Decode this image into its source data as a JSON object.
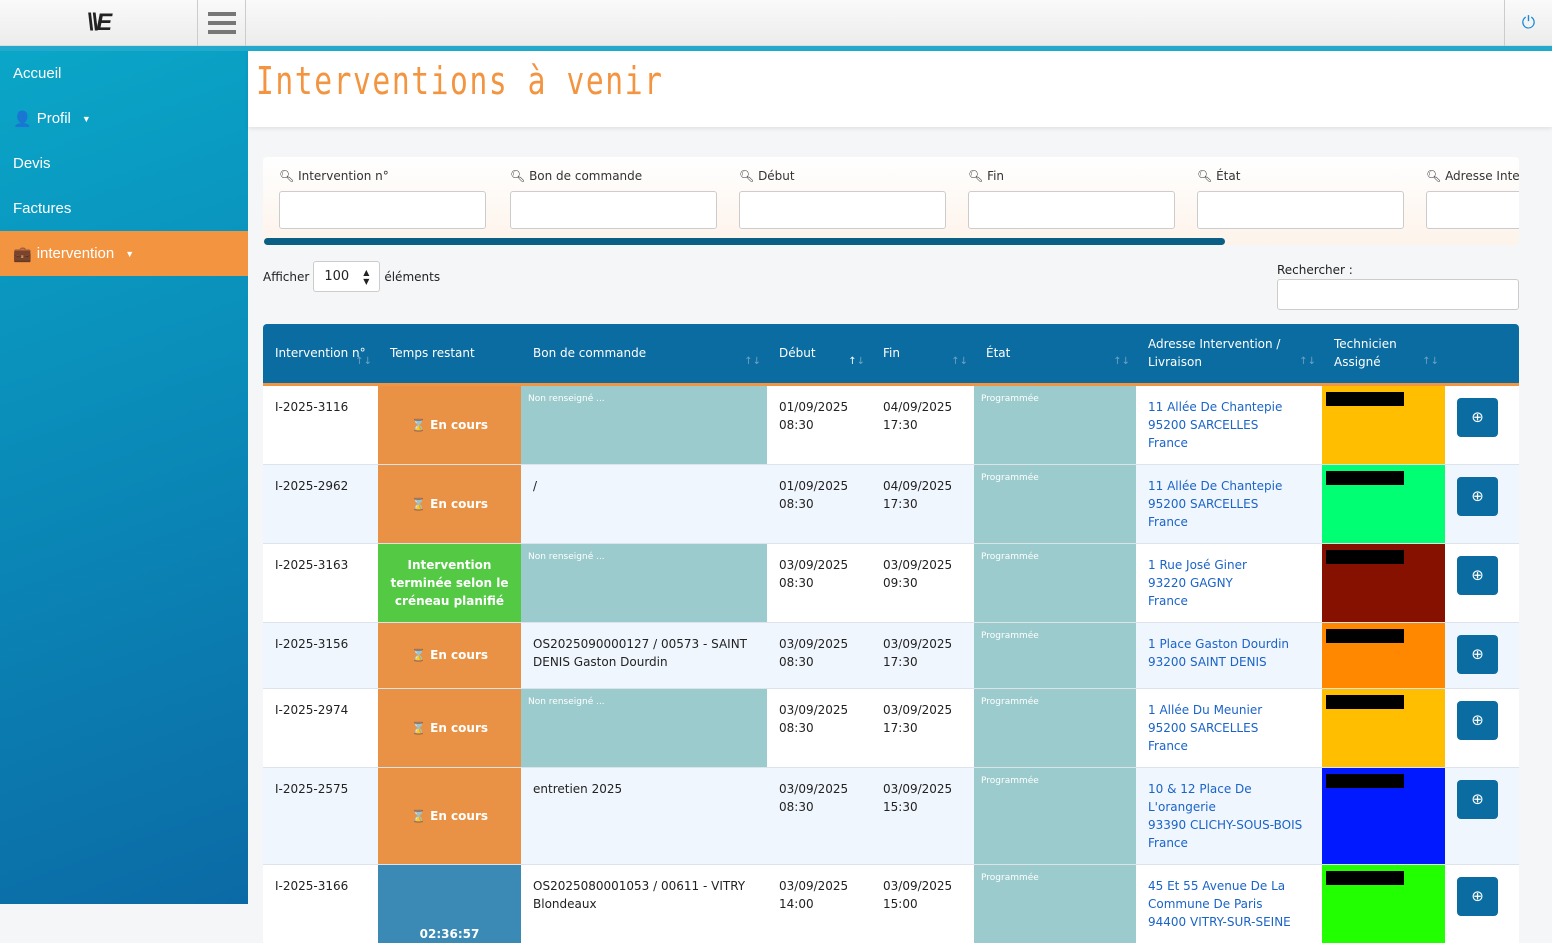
{
  "app": {
    "logo": "\\\\E",
    "power_icon": "power-icon"
  },
  "sidebar": {
    "items": [
      {
        "label": "Accueil"
      },
      {
        "label": "Profil",
        "icon": "user-icon"
      },
      {
        "label": "Devis"
      },
      {
        "label": "Factures"
      },
      {
        "label": "intervention",
        "icon": "briefcase-icon",
        "active": true
      }
    ]
  },
  "page": {
    "title": "Interventions à venir"
  },
  "filters": [
    "Intervention n°",
    "Bon de commande",
    "Début",
    "Fin",
    "État",
    "Adresse Interv"
  ],
  "length": {
    "prefix": "Afficher",
    "value": "100",
    "suffix": "éléments"
  },
  "search": {
    "label": "Rechercher :"
  },
  "table": {
    "headers": [
      "Intervention n°",
      "Temps restant",
      "Bon de commande",
      "Début",
      "Fin",
      "État",
      "Adresse Intervention / Livraison",
      "Technicien Assigné",
      ""
    ],
    "rows": [
      {
        "id": "I-2025-3116",
        "temps": "⌛ En cours",
        "temps_color": "#e99245",
        "bon": "Non renseigné ...",
        "bon_empty": true,
        "debut": [
          "01/09/2025",
          "08:30"
        ],
        "fin": [
          "04/09/2025",
          "17:30"
        ],
        "etat": "Programmée",
        "addr": [
          "11 Allée De Chantepie",
          "95200 SARCELLES",
          "France"
        ],
        "tech_color": "#ffbf00"
      },
      {
        "id": "I-2025-2962",
        "temps": "⌛ En cours",
        "temps_color": "#e99245",
        "bon": "/",
        "bon_empty": false,
        "debut": [
          "01/09/2025",
          "08:30"
        ],
        "fin": [
          "04/09/2025",
          "17:30"
        ],
        "etat": "Programmée",
        "addr": [
          "11 Allée De Chantepie",
          "95200 SARCELLES",
          "France"
        ],
        "tech_color": "#00ff72"
      },
      {
        "id": "I-2025-3163",
        "temps": "Intervention terminée selon le créneau planifié",
        "temps_color": "#53c944",
        "bon": "Non renseigné ...",
        "bon_empty": true,
        "debut": [
          "03/09/2025",
          "08:30"
        ],
        "fin": [
          "03/09/2025",
          "09:30"
        ],
        "etat": "Programmée",
        "addr": [
          "1 Rue José Giner",
          "93220 GAGNY",
          "France"
        ],
        "tech_color": "#861100"
      },
      {
        "id": "I-2025-3156",
        "temps": "⌛ En cours",
        "temps_color": "#e99245",
        "bon": "OS2025090000127 / 00573 - SAINT DENIS Gaston Dourdin",
        "bon_empty": false,
        "debut": [
          "03/09/2025",
          "08:30"
        ],
        "fin": [
          "03/09/2025",
          "17:30"
        ],
        "etat": "Programmée",
        "addr": [
          "1 Place Gaston Dourdin",
          "93200 SAINT DENIS"
        ],
        "tech_color": "#ff8800"
      },
      {
        "id": "I-2025-2974",
        "temps": "⌛ En cours",
        "temps_color": "#e99245",
        "bon": "Non renseigné ...",
        "bon_empty": true,
        "debut": [
          "03/09/2025",
          "08:30"
        ],
        "fin": [
          "03/09/2025",
          "17:30"
        ],
        "etat": "Programmée",
        "addr": [
          "1 Allée Du Meunier",
          "95200 SARCELLES",
          "France"
        ],
        "tech_color": "#ffbf00"
      },
      {
        "id": "I-2025-2575",
        "temps": "⌛ En cours",
        "temps_color": "#e99245",
        "bon": "entretien 2025",
        "bon_empty": false,
        "debut": [
          "03/09/2025",
          "08:30"
        ],
        "fin": [
          "03/09/2025",
          "15:30"
        ],
        "etat": "Programmée",
        "addr": [
          "10 & 12 Place De L'orangerie",
          "93390 CLICHY-SOUS-BOIS",
          "France"
        ],
        "tech_color": "#0019ff"
      },
      {
        "id": "I-2025-3166",
        "temps": "02:36:57",
        "temps_color": "#3a8ab5",
        "bon": "OS2025080001053 / 00611 - VITRY Blondeaux",
        "bon_empty": false,
        "debut": [
          "03/09/2025",
          "14:00"
        ],
        "fin": [
          "03/09/2025",
          "15:00"
        ],
        "etat": "Programmée",
        "addr": [
          "45 Et 55 Avenue De La",
          "Commune De Paris",
          "94400 VITRY-SUR-SEINE"
        ],
        "tech_color": "#22ff00"
      }
    ]
  }
}
